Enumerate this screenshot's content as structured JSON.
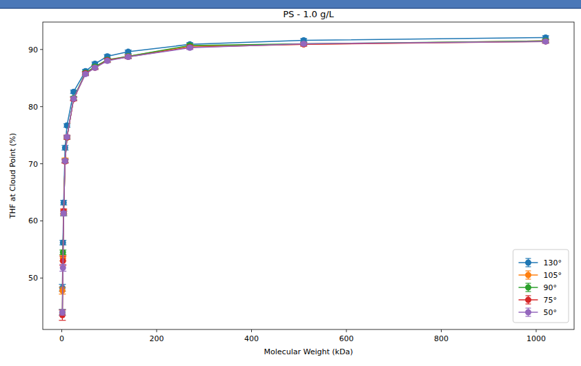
{
  "chart_data": {
    "type": "line",
    "title": "PS - 1.0 g/L",
    "x_label": "Molecular Weight (kDa)",
    "y_label": "THF at Cloud Point (%)",
    "x": [
      1.3,
      2.5,
      4,
      7,
      11,
      25,
      50,
      70,
      96,
      140,
      270,
      510,
      1020
    ],
    "xlim": [
      -40,
      1080
    ],
    "xticks": [
      0,
      200,
      400,
      600,
      800,
      1000
    ],
    "ylim": [
      41,
      94.8
    ],
    "yticks": [
      50,
      60,
      70,
      80,
      90
    ],
    "grid": false,
    "legend": "lower right",
    "marker": "circle",
    "series": [
      {
        "name": "130°",
        "color": "#1f77b4",
        "values": [
          48.3,
          56.2,
          63.2,
          72.8,
          76.7,
          82.6,
          86.2,
          87.5,
          88.8,
          89.6,
          90.9,
          91.6,
          92.1
        ],
        "errors": [
          0.6,
          0.4,
          0.4,
          0.4,
          0.3,
          0.3,
          0.3,
          0.3,
          0.3,
          0.3,
          0.3,
          0.3,
          0.3
        ]
      },
      {
        "name": "105°",
        "color": "#ff7f0e",
        "values": [
          47.8,
          53.5,
          61.5,
          70.6,
          74.7,
          81.4,
          85.8,
          86.9,
          88.1,
          88.8,
          90.6,
          90.9,
          91.5
        ],
        "errors": [
          0.6,
          0.5,
          0.4,
          0.4,
          0.3,
          0.3,
          0.3,
          0.3,
          0.3,
          0.3,
          0.3,
          0.3,
          0.3
        ]
      },
      {
        "name": "90°",
        "color": "#2ca02c",
        "values": [
          44.0,
          54.5,
          61.3,
          70.5,
          74.6,
          81.5,
          85.9,
          87.0,
          88.2,
          88.8,
          90.7,
          91.0,
          91.5
        ],
        "errors": [
          0.5,
          0.4,
          0.4,
          0.3,
          0.3,
          0.3,
          0.3,
          0.3,
          0.3,
          0.3,
          0.3,
          0.3,
          0.3
        ]
      },
      {
        "name": "75°",
        "color": "#d62728",
        "values": [
          43.5,
          53.0,
          61.7,
          70.4,
          74.6,
          81.3,
          85.8,
          86.8,
          88.1,
          88.7,
          90.4,
          90.9,
          91.4
        ],
        "errors": [
          0.9,
          0.8,
          0.4,
          0.3,
          0.3,
          0.3,
          0.3,
          0.3,
          0.3,
          0.3,
          0.3,
          0.3,
          0.3
        ]
      },
      {
        "name": "50°",
        "color": "#9467bd",
        "values": [
          44.0,
          51.8,
          61.3,
          70.5,
          74.7,
          81.4,
          85.7,
          86.8,
          88.0,
          88.7,
          90.3,
          91.0,
          91.4
        ],
        "errors": [
          0.5,
          0.6,
          0.4,
          0.3,
          0.3,
          0.3,
          0.3,
          0.3,
          0.3,
          0.3,
          0.3,
          0.3,
          0.3
        ]
      }
    ]
  }
}
